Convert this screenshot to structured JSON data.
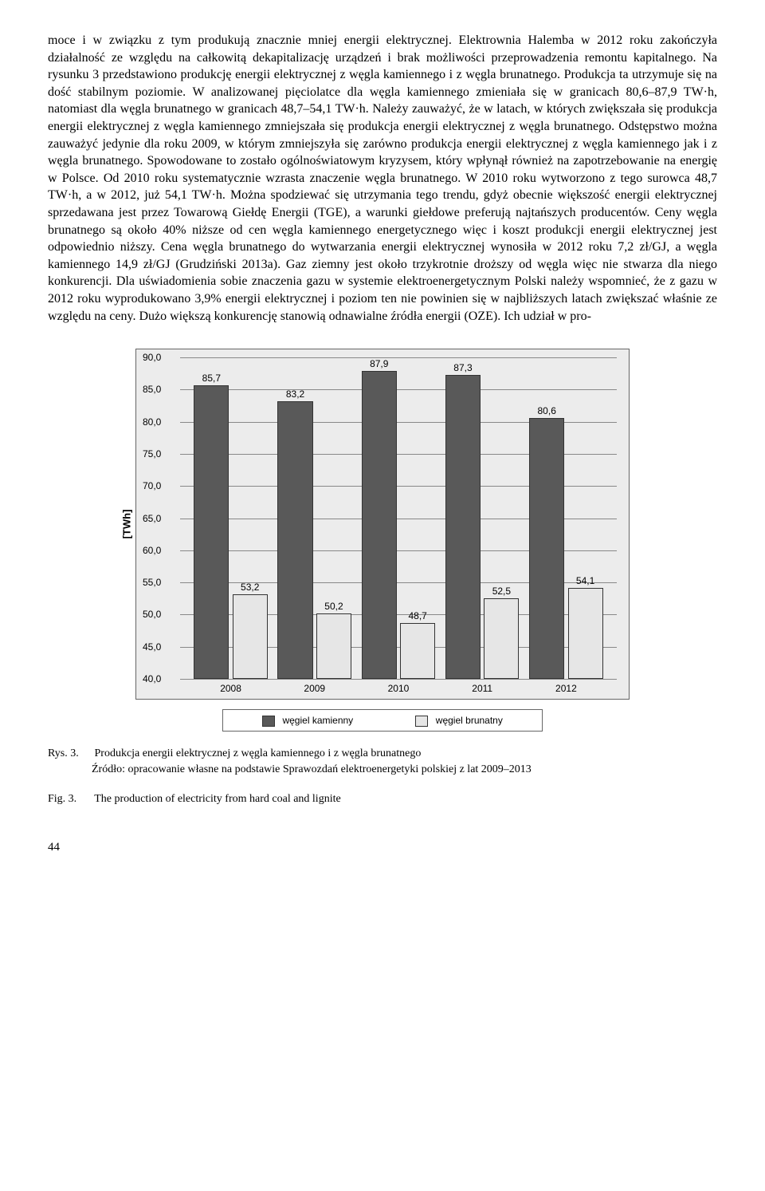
{
  "body_text": "moce i w związku z tym produkują znacznie mniej energii elektrycznej. Elektrownia Halemba w 2012 roku zakończyła działalność ze względu na całkowitą dekapitalizację urządzeń i brak możliwości przeprowadzenia remontu kapitalnego. Na rysunku 3 przedstawiono produkcję energii elektrycznej z węgla kamiennego i z węgla brunatnego. Produkcja ta utrzymuje się na dość stabilnym poziomie. W analizowanej pięciolatce dla węgla kamiennego zmieniała się w granicach 80,6–87,9 TW·h, natomiast dla węgla brunatnego w granicach 48,7–54,1 TW·h. Należy zauważyć, że w latach, w których zwiększała się produkcja energii elektrycznej z węgla kamiennego zmniejszała się produkcja energii elektrycznej z węgla brunatnego. Odstępstwo można zauważyć jedynie dla roku 2009, w którym zmniejszyła się zarówno produkcja energii elektrycznej z węgla kamiennego jak i z węgla brunatnego. Spowodowane to zostało ogólnoświatowym kryzysem, który wpłynął również na zapotrzebowanie na energię w Polsce. Od 2010 roku systematycznie wzrasta znaczenie węgla brunatnego. W 2010 roku wytworzono z tego surowca 48,7 TW·h, a w 2012, już 54,1 TW·h. Można spodziewać się utrzymania tego trendu, gdyż obecnie większość energii elektrycznej sprzedawana jest przez Towarową Giełdę Energii (TGE), a warunki giełdowe preferują najtańszych producentów. Ceny węgla brunatnego są około 40% niższe od cen węgla kamiennego energetycznego więc i koszt produkcji energii elektrycznej jest odpowiednio niższy. Cena węgla brunatnego do wytwarzania energii elektrycznej wynosiła w 2012 roku 7,2 zł/GJ, a węgla kamiennego 14,9 zł/GJ (Grudziński 2013a). Gaz ziemny jest około trzykrotnie droższy od węgla więc nie stwarza dla niego konkurencji. Dla uświadomienia sobie znaczenia gazu w systemie elektroenergetycznym Polski należy wspomnieć, że z gazu w 2012 roku wyprodukowano 3,9% energii elektrycznej i poziom ten nie powinien się w najbliższych latach zwiększać właśnie ze względu na ceny. Dużo większą konkurencję stanowią odnawialne źródła energii (OZE). Ich udział w pro-",
  "chart": {
    "type": "bar",
    "ylabel": "[TWh]",
    "ylim": [
      40.0,
      90.0
    ],
    "ytick_step": 5.0,
    "yticks": [
      "40,0",
      "45,0",
      "50,0",
      "55,0",
      "60,0",
      "65,0",
      "70,0",
      "75,0",
      "80,0",
      "85,0",
      "90,0"
    ],
    "categories": [
      "2008",
      "2009",
      "2010",
      "2011",
      "2012"
    ],
    "series": [
      {
        "name": "węgiel kamienny",
        "color": "#595959",
        "values": [
          85.7,
          83.2,
          87.9,
          87.3,
          80.6
        ],
        "labels": [
          "85,7",
          "83,2",
          "87,9",
          "87,3",
          "80,6"
        ]
      },
      {
        "name": "węgiel brunatny",
        "color": "#e6e6e6",
        "values": [
          53.2,
          50.2,
          48.7,
          52.5,
          54.1
        ],
        "labels": [
          "53,2",
          "50,2",
          "48,7",
          "52,5",
          "54,1"
        ]
      }
    ],
    "background_color": "#ececec",
    "grid_color": "#888",
    "label_fontsize": 12,
    "ylabel_fontsize": 13,
    "bar_border": "#333"
  },
  "caption": {
    "rys_label": "Rys. 3.",
    "rys_text": "Produkcja energii elektrycznej z węgla kamiennego i z węgla brunatnego",
    "src_text": "Źródło: opracowanie własne na podstawie Sprawozdań elektroenergetyki polskiej z lat 2009–2013",
    "fig_label": "Fig. 3.",
    "fig_text": "The production of electricity from hard coal and lignite"
  },
  "page_number": "44"
}
